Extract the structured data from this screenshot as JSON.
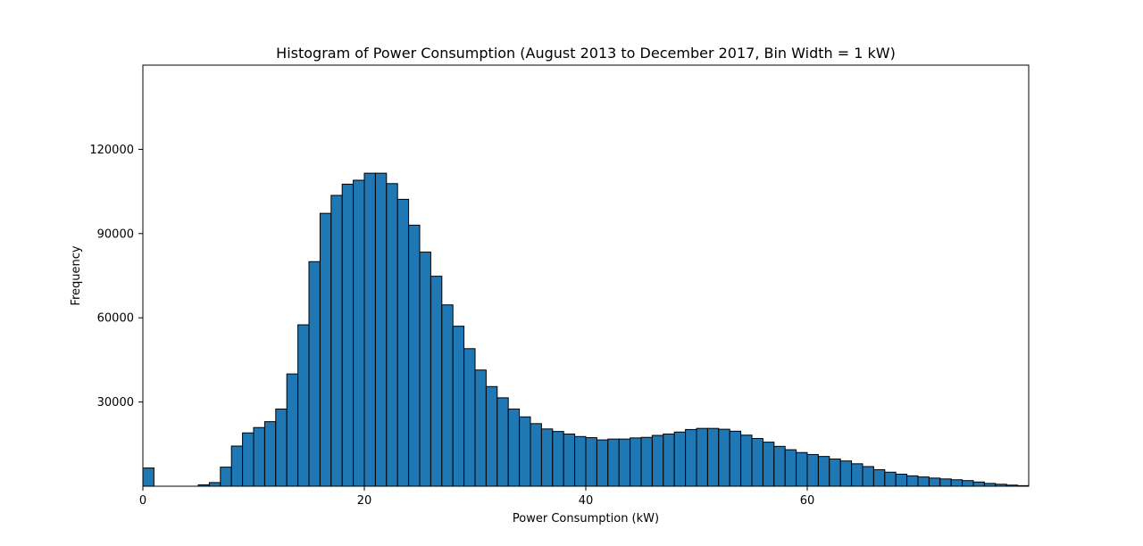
{
  "chart_data": {
    "type": "bar",
    "title": "Histogram of Power Consumption (August 2013 to December 2017, Bin Width = 1 kW)",
    "xlabel": "Power Consumption (kW)",
    "ylabel": "Frequency",
    "xlim": [
      0,
      80
    ],
    "ylim": [
      0,
      150000
    ],
    "bin_width": 1,
    "x_ticks": [
      0,
      20,
      40,
      60
    ],
    "x_tick_labels": [
      "0",
      "20",
      "40",
      "60"
    ],
    "y_ticks": [
      30000,
      60000,
      90000,
      120000
    ],
    "y_tick_labels": [
      "30000",
      "60000",
      "90000",
      "120000"
    ],
    "bar_color": "#1f77b4",
    "edge_color": "#000000",
    "grid": false,
    "bins": [
      0,
      1,
      2,
      3,
      4,
      5,
      6,
      7,
      8,
      9,
      10,
      11,
      12,
      13,
      14,
      15,
      16,
      17,
      18,
      19,
      20,
      21,
      22,
      23,
      24,
      25,
      26,
      27,
      28,
      29,
      30,
      31,
      32,
      33,
      34,
      35,
      36,
      37,
      38,
      39,
      40,
      41,
      42,
      43,
      44,
      45,
      46,
      47,
      48,
      49,
      50,
      51,
      52,
      53,
      54,
      55,
      56,
      57,
      58,
      59,
      60,
      61,
      62,
      63,
      64,
      65,
      66,
      67,
      68,
      69,
      70,
      71,
      72,
      73,
      74,
      75,
      76,
      77,
      78,
      79
    ],
    "values": [
      6500,
      0,
      0,
      0,
      0,
      500,
      1300,
      6800,
      14300,
      19000,
      20900,
      23000,
      27500,
      40000,
      57500,
      80000,
      97200,
      103600,
      107600,
      109000,
      111500,
      111500,
      107800,
      102200,
      93000,
      83400,
      74800,
      64600,
      57000,
      49000,
      41400,
      35500,
      31500,
      27500,
      24700,
      22300,
      20400,
      19500,
      18600,
      17700,
      17300,
      16500,
      16800,
      16800,
      17200,
      17400,
      18100,
      18600,
      19300,
      20200,
      20600,
      20600,
      20300,
      19600,
      18200,
      17000,
      15700,
      14200,
      13000,
      12000,
      11300,
      10600,
      9700,
      9000,
      8000,
      7000,
      5900,
      5000,
      4300,
      3700,
      3300,
      2900,
      2600,
      2300,
      2000,
      1500,
      1000,
      700,
      400,
      200
    ]
  }
}
